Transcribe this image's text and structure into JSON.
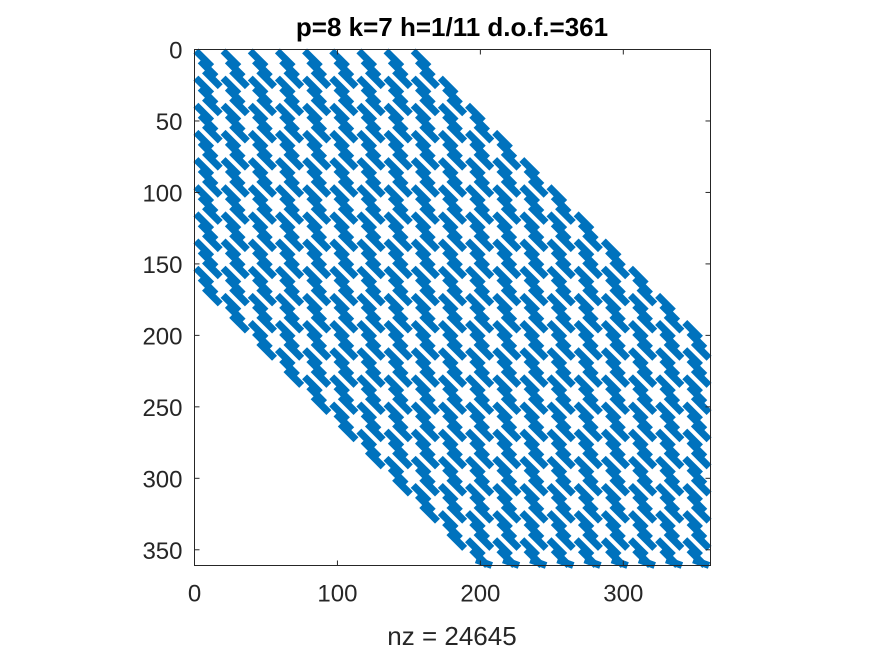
{
  "chart_data": {
    "type": "spy",
    "title": "p=8 k=7 h=1/11 d.o.f.=361",
    "xlabel": "nz = 24645",
    "ylabel": "",
    "xlim": [
      0,
      361
    ],
    "ylim": [
      361,
      0
    ],
    "x_ticks": [
      "0",
      "100",
      "200",
      "300"
    ],
    "x_tick_values": [
      0,
      100,
      200,
      300
    ],
    "y_ticks": [
      "0",
      "50",
      "100",
      "150",
      "200",
      "250",
      "300",
      "350"
    ],
    "y_tick_values": [
      0,
      50,
      100,
      150,
      200,
      250,
      300,
      350
    ],
    "grid": false,
    "marker_color": "#0072BD",
    "pattern": "banded sparse matrix: row-block bands of diagonal strokes, each band shifted right by ~19 columns per ~19-row block",
    "nz": 24645,
    "dof": 361
  }
}
